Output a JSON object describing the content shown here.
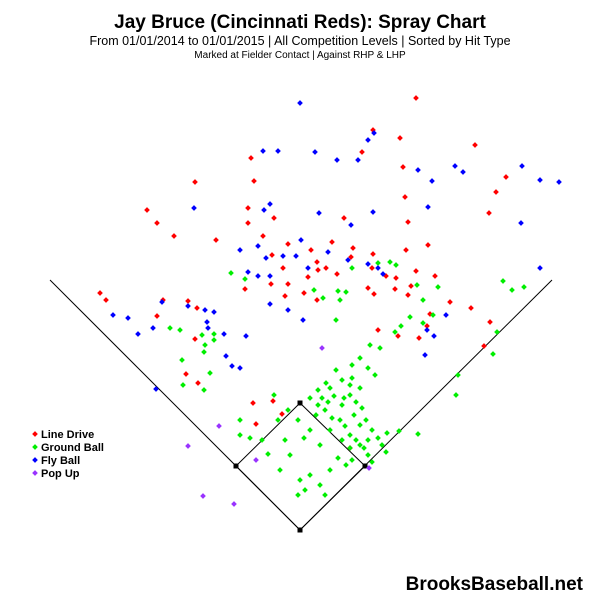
{
  "chart_data": {
    "type": "scatter",
    "title": "Jay Bruce (Cincinnati Reds): Spray Chart",
    "subtitle": "From 01/01/2014 to 01/01/2015 | All Competition Levels | Sorted by Hit Type",
    "subtitle2": "Marked at Fielder Contact |   Against RHP & LHP",
    "watermark": "BrooksBaseball.net",
    "legend_position": "left",
    "series": [
      {
        "name": "Line Drive",
        "color": "#ff0000",
        "points": [
          [
            416,
            98
          ],
          [
            373,
            130
          ],
          [
            400,
            138
          ],
          [
            475,
            145
          ],
          [
            362,
            152
          ],
          [
            251,
            158
          ],
          [
            403,
            167
          ],
          [
            195,
            182
          ],
          [
            506,
            177
          ],
          [
            254,
            181
          ],
          [
            147,
            210
          ],
          [
            248,
            208
          ],
          [
            274,
            218
          ],
          [
            344,
            218
          ],
          [
            496,
            192
          ],
          [
            489,
            213
          ],
          [
            405,
            197
          ],
          [
            157,
            223
          ],
          [
            248,
            223
          ],
          [
            408,
            222
          ],
          [
            174,
            236
          ],
          [
            216,
            240
          ],
          [
            263,
            236
          ],
          [
            288,
            244
          ],
          [
            272,
            255
          ],
          [
            311,
            250
          ],
          [
            332,
            242
          ],
          [
            353,
            248
          ],
          [
            351,
            257
          ],
          [
            317,
            262
          ],
          [
            428,
            245
          ],
          [
            373,
            254
          ],
          [
            406,
            250
          ],
          [
            283,
            268
          ],
          [
            318,
            270
          ],
          [
            326,
            268
          ],
          [
            337,
            274
          ],
          [
            271,
            284
          ],
          [
            288,
            284
          ],
          [
            308,
            277
          ],
          [
            372,
            268
          ],
          [
            368,
            288
          ],
          [
            386,
            276
          ],
          [
            396,
            278
          ],
          [
            416,
            271
          ],
          [
            411,
            286
          ],
          [
            435,
            276
          ],
          [
            100,
            293
          ],
          [
            106,
            300
          ],
          [
            163,
            300
          ],
          [
            188,
            301
          ],
          [
            197,
            308
          ],
          [
            245,
            289
          ],
          [
            285,
            296
          ],
          [
            304,
            293
          ],
          [
            317,
            300
          ],
          [
            374,
            294
          ],
          [
            395,
            289
          ],
          [
            408,
            295
          ],
          [
            430,
            314
          ],
          [
            427,
            326
          ],
          [
            471,
            308
          ],
          [
            450,
            302
          ],
          [
            490,
            322
          ],
          [
            157,
            316
          ],
          [
            195,
            339
          ],
          [
            186,
            374
          ],
          [
            198,
            383
          ],
          [
            253,
            403
          ],
          [
            273,
            401
          ],
          [
            256,
            424
          ],
          [
            282,
            414
          ],
          [
            419,
            338
          ],
          [
            484,
            346
          ],
          [
            378,
            330
          ],
          [
            398,
            336
          ],
          [
            350,
            448
          ]
        ]
      },
      {
        "name": "Ground Ball",
        "color": "#00ee00",
        "points": [
          [
            390,
            262
          ],
          [
            396,
            265
          ],
          [
            231,
            273
          ],
          [
            245,
            279
          ],
          [
            352,
            268
          ],
          [
            378,
            263
          ],
          [
            417,
            285
          ],
          [
            438,
            287
          ],
          [
            503,
            281
          ],
          [
            512,
            290
          ],
          [
            524,
            287
          ],
          [
            314,
            290
          ],
          [
            323,
            298
          ],
          [
            338,
            291
          ],
          [
            346,
            292
          ],
          [
            340,
            300
          ],
          [
            423,
            300
          ],
          [
            433,
            315
          ],
          [
            423,
            323
          ],
          [
            410,
            317
          ],
          [
            401,
            326
          ],
          [
            395,
            332
          ],
          [
            170,
            328
          ],
          [
            180,
            330
          ],
          [
            202,
            335
          ],
          [
            214,
            334
          ],
          [
            214,
            340
          ],
          [
            205,
            345
          ],
          [
            182,
            360
          ],
          [
            204,
            352
          ],
          [
            210,
            373
          ],
          [
            183,
            385
          ],
          [
            204,
            390
          ],
          [
            336,
            320
          ],
          [
            370,
            345
          ],
          [
            380,
            348
          ],
          [
            360,
            358
          ],
          [
            368,
            368
          ],
          [
            375,
            375
          ],
          [
            352,
            365
          ],
          [
            352,
            378
          ],
          [
            336,
            370
          ],
          [
            326,
            383
          ],
          [
            318,
            390
          ],
          [
            310,
            398
          ],
          [
            318,
            405
          ],
          [
            325,
            410
          ],
          [
            332,
            418
          ],
          [
            340,
            420
          ],
          [
            345,
            426
          ],
          [
            350,
            435
          ],
          [
            356,
            440
          ],
          [
            360,
            445
          ],
          [
            364,
            448
          ],
          [
            368,
            455
          ],
          [
            372,
            462
          ],
          [
            368,
            440
          ],
          [
            372,
            430
          ],
          [
            378,
            438
          ],
          [
            382,
            445
          ],
          [
            386,
            452
          ],
          [
            360,
            425
          ],
          [
            354,
            415
          ],
          [
            342,
            405
          ],
          [
            334,
            396
          ],
          [
            330,
            388
          ],
          [
            344,
            398
          ],
          [
            350,
            395
          ],
          [
            356,
            402
          ],
          [
            362,
            408
          ],
          [
            366,
            420
          ],
          [
            360,
            388
          ],
          [
            350,
            385
          ],
          [
            342,
            380
          ],
          [
            328,
            402
          ],
          [
            322,
            398
          ],
          [
            316,
            415
          ],
          [
            310,
            430
          ],
          [
            304,
            438
          ],
          [
            298,
            420
          ],
          [
            288,
            410
          ],
          [
            274,
            395
          ],
          [
            278,
            420
          ],
          [
            285,
            440
          ],
          [
            290,
            455
          ],
          [
            280,
            470
          ],
          [
            300,
            480
          ],
          [
            305,
            490
          ],
          [
            298,
            495
          ],
          [
            310,
            475
          ],
          [
            320,
            485
          ],
          [
            325,
            495
          ],
          [
            330,
            470
          ],
          [
            338,
            458
          ],
          [
            346,
            465
          ],
          [
            352,
            460
          ],
          [
            342,
            440
          ],
          [
            350,
            448
          ],
          [
            330,
            430
          ],
          [
            320,
            445
          ],
          [
            240,
            420
          ],
          [
            240,
            435
          ],
          [
            250,
            438
          ],
          [
            262,
            440
          ],
          [
            268,
            454
          ],
          [
            387,
            433
          ],
          [
            399,
            431
          ],
          [
            418,
            434
          ],
          [
            456,
            395
          ],
          [
            458,
            375
          ],
          [
            493,
            354
          ],
          [
            497,
            332
          ]
        ]
      },
      {
        "name": "Fly Ball",
        "color": "#0000ff",
        "points": [
          [
            300,
            103
          ],
          [
            374,
            133
          ],
          [
            368,
            140
          ],
          [
            263,
            151
          ],
          [
            278,
            151
          ],
          [
            315,
            152
          ],
          [
            337,
            160
          ],
          [
            358,
            160
          ],
          [
            418,
            170
          ],
          [
            455,
            166
          ],
          [
            463,
            172
          ],
          [
            522,
            166
          ],
          [
            432,
            181
          ],
          [
            540,
            180
          ],
          [
            559,
            182
          ],
          [
            194,
            208
          ],
          [
            264,
            210
          ],
          [
            270,
            204
          ],
          [
            319,
            213
          ],
          [
            373,
            212
          ],
          [
            428,
            207
          ],
          [
            521,
            223
          ],
          [
            351,
            225
          ],
          [
            258,
            246
          ],
          [
            240,
            250
          ],
          [
            266,
            258
          ],
          [
            283,
            256
          ],
          [
            296,
            256
          ],
          [
            248,
            272
          ],
          [
            258,
            276
          ],
          [
            270,
            276
          ],
          [
            301,
            240
          ],
          [
            270,
            304
          ],
          [
            288,
            310
          ],
          [
            303,
            320
          ],
          [
            368,
            264
          ],
          [
            378,
            268
          ],
          [
            383,
            274
          ],
          [
            348,
            260
          ],
          [
            308,
            268
          ],
          [
            328,
            252
          ],
          [
            540,
            268
          ],
          [
            162,
            302
          ],
          [
            113,
            315
          ],
          [
            128,
            318
          ],
          [
            138,
            334
          ],
          [
            153,
            328
          ],
          [
            188,
            306
          ],
          [
            205,
            310
          ],
          [
            207,
            322
          ],
          [
            208,
            328
          ],
          [
            214,
            312
          ],
          [
            224,
            334
          ],
          [
            246,
            336
          ],
          [
            226,
            356
          ],
          [
            232,
            366
          ],
          [
            240,
            368
          ],
          [
            156,
            389
          ],
          [
            427,
            330
          ],
          [
            434,
            336
          ],
          [
            425,
            355
          ],
          [
            446,
            315
          ]
        ]
      },
      {
        "name": "Pop Up",
        "color": "#9933ff",
        "points": [
          [
            322,
            348
          ],
          [
            219,
            426
          ],
          [
            256,
            460
          ],
          [
            188,
            446
          ],
          [
            234,
            504
          ],
          [
            203,
            496
          ],
          [
            369,
            468
          ]
        ]
      }
    ],
    "diamond": {
      "home": [
        300,
        530
      ],
      "first": [
        365,
        466
      ],
      "second": [
        300,
        403
      ],
      "third": [
        236,
        466
      ],
      "left_foul_end": [
        50,
        280
      ],
      "right_foul_end": [
        552,
        280
      ]
    }
  }
}
